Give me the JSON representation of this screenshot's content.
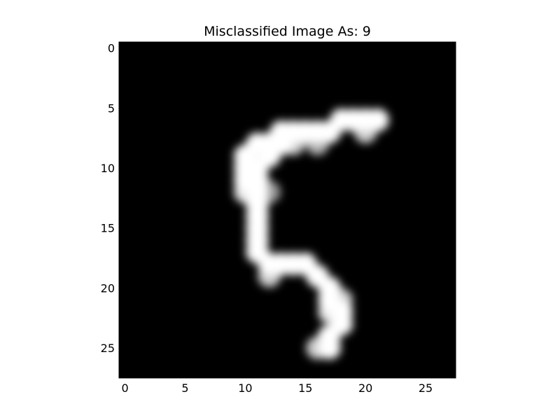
{
  "chart_data": {
    "type": "heatmap",
    "title": "Misclassified Image As: 9",
    "xlabel": "",
    "ylabel": "",
    "colormap": "gray",
    "colors": {
      "low": "#000000",
      "high": "#ffffff"
    },
    "interpolation": "smooth",
    "xlim": [
      -0.5,
      27.5
    ],
    "ylim": [
      27.5,
      -0.5
    ],
    "xticks": [
      0,
      5,
      10,
      15,
      20,
      25
    ],
    "xtick_labels": [
      "0",
      "5",
      "10",
      "15",
      "20",
      "25"
    ],
    "yticks": [
      0,
      5,
      10,
      15,
      20,
      25
    ],
    "ytick_labels": [
      "0",
      "5",
      "10",
      "15",
      "20",
      "25"
    ],
    "grid": false,
    "image_size": [
      28,
      28
    ],
    "stroke_points": [
      [
        21,
        6,
        1.0
      ],
      [
        20,
        6,
        1.0
      ],
      [
        19,
        6,
        1.0
      ],
      [
        18,
        6,
        1.0
      ],
      [
        17,
        7,
        1.0
      ],
      [
        16,
        7,
        1.0
      ],
      [
        15,
        7,
        1.0
      ],
      [
        14,
        7,
        1.0
      ],
      [
        13,
        7,
        1.0
      ],
      [
        12,
        8,
        1.0
      ],
      [
        11,
        8,
        1.0
      ],
      [
        10,
        9,
        1.0
      ],
      [
        10,
        10,
        1.0
      ],
      [
        11,
        10,
        1.0
      ],
      [
        12,
        9,
        1.0
      ],
      [
        13,
        8,
        1.0
      ],
      [
        10,
        11,
        1.0
      ],
      [
        11,
        11,
        1.0
      ],
      [
        11,
        12,
        1.0
      ],
      [
        11,
        13,
        1.0
      ],
      [
        11,
        14,
        1.0
      ],
      [
        11,
        15,
        1.0
      ],
      [
        11,
        16,
        1.0
      ],
      [
        11,
        17,
        1.0
      ],
      [
        12,
        18,
        1.0
      ],
      [
        13,
        18,
        1.0
      ],
      [
        14,
        18,
        1.0
      ],
      [
        15,
        18,
        1.0
      ],
      [
        16,
        19,
        1.0
      ],
      [
        17,
        20,
        1.0
      ],
      [
        17,
        21,
        1.0
      ],
      [
        18,
        22,
        1.0
      ],
      [
        18,
        23,
        1.0
      ],
      [
        17,
        24,
        1.0
      ],
      [
        17,
        25,
        1.0
      ],
      [
        16,
        25,
        0.8
      ],
      [
        12,
        19,
        0.8
      ],
      [
        16,
        8,
        0.7
      ],
      [
        20,
        7,
        0.8
      ],
      [
        14,
        8,
        0.8
      ],
      [
        10,
        12,
        0.9
      ],
      [
        12,
        12,
        0.6
      ],
      [
        17,
        22,
        0.9
      ],
      [
        18,
        21,
        0.8
      ]
    ]
  }
}
